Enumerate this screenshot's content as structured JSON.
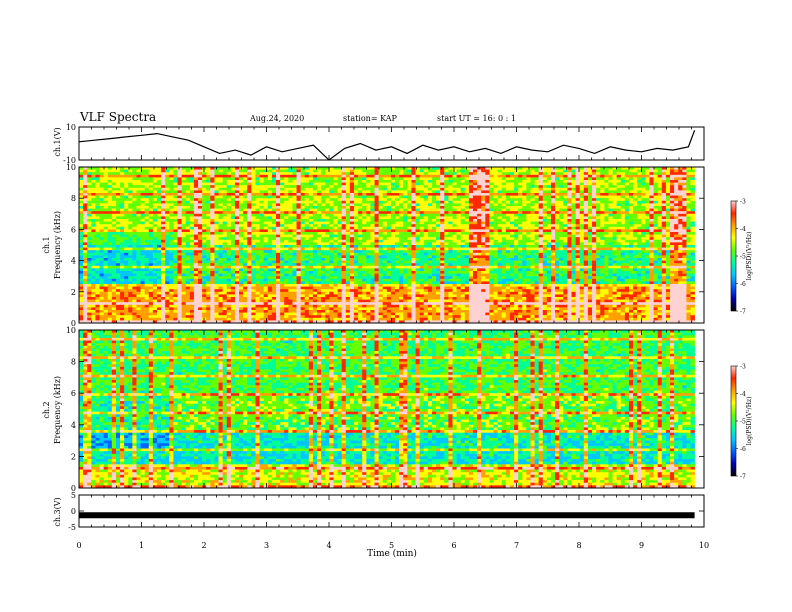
{
  "header": {
    "title": "VLF Spectra",
    "date": "Aug.24, 2020",
    "station": "station= KAP",
    "start": "start  UT =   16: 0  : 1"
  },
  "chart_data": [
    {
      "type": "line",
      "ylabel": "ch.1(V)",
      "ylim": [
        -10,
        10
      ],
      "yticks": [
        "10",
        "-10"
      ],
      "xlim": [
        0,
        10
      ],
      "series": [
        {
          "x": [
            0,
            0.25,
            0.5,
            0.75,
            1,
            1.25,
            1.5,
            1.75,
            2,
            2.25,
            2.5,
            2.75,
            3,
            3.25,
            3.5,
            3.75,
            4,
            4.25,
            4.5,
            4.75,
            5,
            5.25,
            5.5,
            5.75,
            6,
            6.25,
            6.5,
            6.75,
            7,
            7.25,
            7.5,
            7.75,
            8,
            8.25,
            8.5,
            8.75,
            9,
            9.25,
            9.5,
            9.75,
            9.85
          ],
          "values": [
            1,
            2,
            3,
            4,
            5,
            6,
            4,
            2,
            -2,
            -6,
            -4,
            -7,
            -2,
            -5,
            -3,
            -1,
            -10,
            -3,
            0,
            -4,
            -2,
            -6,
            -1,
            -4,
            -2,
            -5,
            -3,
            -6,
            -2,
            -4,
            -5,
            -1,
            -3,
            -6,
            -2,
            -4,
            -5,
            -3,
            -4,
            -2,
            8
          ]
        }
      ]
    },
    {
      "type": "heatmap",
      "ylabel": "ch.1\nFrequency  (kHz)",
      "ylim": [
        0,
        10
      ],
      "yticks": [
        "0",
        "2",
        "4",
        "6",
        "8",
        "10"
      ],
      "xlim": [
        0,
        10
      ],
      "colorbar": {
        "label": "log(PSD)(V²/Hz)",
        "ticks": [
          "-3",
          "-4",
          "-5",
          "-6",
          "-7"
        ],
        "range": [
          -7,
          -3
        ]
      }
    },
    {
      "type": "heatmap",
      "ylabel": "ch.2\nFrequency  (kHz)",
      "ylim": [
        0,
        10
      ],
      "yticks": [
        "0",
        "2",
        "4",
        "6",
        "8",
        "10"
      ],
      "xlim": [
        0,
        10
      ],
      "colorbar": {
        "label": "log(PSD)(V²/Hz)",
        "ticks": [
          "-3",
          "-4",
          "-5",
          "-6",
          "-7"
        ],
        "range": [
          -7,
          -3
        ]
      }
    },
    {
      "type": "line",
      "ylabel": "ch.3(V)",
      "ylim": [
        -5,
        5
      ],
      "yticks": [
        "5",
        "0",
        "-5"
      ],
      "xlim": [
        0,
        10
      ],
      "xlabel": "Time  (min)",
      "xticks": [
        "0",
        "1",
        "2",
        "3",
        "4",
        "5",
        "6",
        "7",
        "8",
        "9",
        "10"
      ],
      "series": [
        {
          "x": [
            0,
            9.85
          ],
          "values": [
            -1.3,
            -1.3
          ]
        }
      ]
    }
  ],
  "colors": {
    "colormap": [
      "#000000",
      "#0000b4",
      "#0064ff",
      "#00c8ff",
      "#00ff96",
      "#64ff00",
      "#ffff00",
      "#ffa000",
      "#ff2800",
      "#ffd2d2"
    ]
  }
}
